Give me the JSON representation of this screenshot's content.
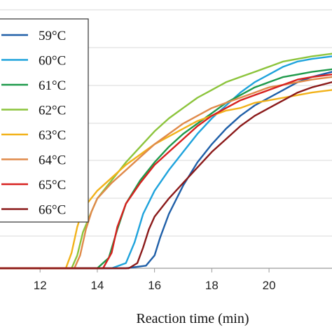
{
  "chart_data": {
    "type": "line",
    "title": "",
    "xlabel": "Reaction time (min)",
    "ylabel": "",
    "xlim": [
      10.6,
      22.2
    ],
    "ylim": [
      0,
      1
    ],
    "xticks": [
      12,
      14,
      16,
      18,
      20
    ],
    "xtick_labels": [
      "12",
      "14",
      "16",
      "18",
      "20"
    ],
    "grid": "horizontal",
    "legend": "top-left",
    "series": [
      {
        "name": "59°C",
        "color": "#1f5fa8",
        "x": [
          10.6,
          15.0,
          15.7,
          16.0,
          16.2,
          16.5,
          17.0,
          17.5,
          18.0,
          18.5,
          19.0,
          19.5,
          20.0,
          20.5,
          21.0,
          21.5,
          22.2
        ],
        "y": [
          0.0,
          0.0,
          0.01,
          0.05,
          0.12,
          0.21,
          0.32,
          0.41,
          0.48,
          0.54,
          0.59,
          0.63,
          0.66,
          0.69,
          0.72,
          0.74,
          0.76
        ]
      },
      {
        "name": "60°C",
        "color": "#1ea3dc",
        "x": [
          10.6,
          14.5,
          15.0,
          15.3,
          15.6,
          16.0,
          16.5,
          17.0,
          17.5,
          18.0,
          18.5,
          19.0,
          19.5,
          20.0,
          20.5,
          21.0,
          21.5,
          22.2
        ],
        "y": [
          0.0,
          0.0,
          0.02,
          0.1,
          0.21,
          0.3,
          0.38,
          0.45,
          0.52,
          0.58,
          0.63,
          0.68,
          0.72,
          0.75,
          0.78,
          0.8,
          0.81,
          0.82
        ]
      },
      {
        "name": "61°C",
        "color": "#1f9a4b",
        "x": [
          10.6,
          14.0,
          14.4,
          14.7,
          15.0,
          15.5,
          16.0,
          16.5,
          17.0,
          17.5,
          18.0,
          18.5,
          19.0,
          19.5,
          20.0,
          20.5,
          21.0,
          21.5,
          22.2
        ],
        "y": [
          0.0,
          0.0,
          0.04,
          0.15,
          0.25,
          0.34,
          0.41,
          0.47,
          0.52,
          0.56,
          0.6,
          0.64,
          0.67,
          0.7,
          0.72,
          0.74,
          0.75,
          0.76,
          0.77
        ]
      },
      {
        "name": "62°C",
        "color": "#8cc43c",
        "x": [
          10.6,
          13.1,
          13.3,
          13.5,
          13.8,
          14.0,
          14.5,
          15.0,
          15.5,
          16.0,
          16.5,
          17.0,
          17.5,
          18.0,
          18.5,
          19.0,
          19.5,
          20.0,
          20.5,
          21.0,
          21.5,
          22.2
        ],
        "y": [
          0.0,
          0.0,
          0.05,
          0.14,
          0.22,
          0.27,
          0.34,
          0.41,
          0.47,
          0.53,
          0.58,
          0.62,
          0.66,
          0.69,
          0.72,
          0.74,
          0.76,
          0.78,
          0.8,
          0.81,
          0.82,
          0.83
        ]
      },
      {
        "name": "63°C",
        "color": "#f2b21a",
        "x": [
          10.6,
          12.9,
          13.1,
          13.3,
          13.5,
          14.0,
          14.5,
          15.0,
          15.5,
          16.0,
          16.5,
          17.0,
          17.5,
          18.0,
          18.5,
          19.0,
          19.5,
          20.0,
          20.5,
          21.0,
          21.5,
          22.2
        ],
        "y": [
          0.0,
          0.0,
          0.06,
          0.16,
          0.23,
          0.3,
          0.35,
          0.4,
          0.44,
          0.48,
          0.51,
          0.54,
          0.57,
          0.59,
          0.61,
          0.62,
          0.64,
          0.65,
          0.66,
          0.67,
          0.68,
          0.69
        ]
      },
      {
        "name": "64°C",
        "color": "#e08a4a",
        "x": [
          10.6,
          13.2,
          13.4,
          13.6,
          13.8,
          14.0,
          14.5,
          15.0,
          15.5,
          16.0,
          16.5,
          17.0,
          17.5,
          18.0,
          18.5,
          19.0,
          19.5,
          20.0,
          20.5,
          21.0,
          21.5,
          22.2
        ],
        "y": [
          0.0,
          0.0,
          0.05,
          0.15,
          0.22,
          0.27,
          0.33,
          0.38,
          0.43,
          0.48,
          0.52,
          0.56,
          0.59,
          0.62,
          0.64,
          0.66,
          0.68,
          0.7,
          0.71,
          0.72,
          0.73,
          0.74
        ]
      },
      {
        "name": "65°C",
        "color": "#d7211f",
        "x": [
          10.6,
          14.2,
          14.5,
          14.7,
          15.0,
          15.5,
          16.0,
          16.5,
          17.0,
          17.5,
          18.0,
          18.5,
          19.0,
          19.5,
          20.0,
          20.5,
          21.0,
          21.5,
          22.2
        ],
        "y": [
          0.0,
          0.0,
          0.06,
          0.16,
          0.25,
          0.33,
          0.4,
          0.45,
          0.5,
          0.55,
          0.59,
          0.62,
          0.65,
          0.67,
          0.69,
          0.71,
          0.73,
          0.74,
          0.75
        ]
      },
      {
        "name": "66°C",
        "color": "#8b1a1a",
        "x": [
          10.6,
          15.1,
          15.4,
          15.6,
          15.8,
          16.0,
          16.5,
          17.0,
          17.5,
          18.0,
          18.5,
          19.0,
          19.5,
          20.0,
          20.5,
          21.0,
          21.5,
          22.2
        ],
        "y": [
          0.0,
          0.0,
          0.02,
          0.08,
          0.15,
          0.2,
          0.27,
          0.33,
          0.39,
          0.45,
          0.5,
          0.55,
          0.59,
          0.62,
          0.65,
          0.68,
          0.7,
          0.72
        ]
      }
    ]
  }
}
